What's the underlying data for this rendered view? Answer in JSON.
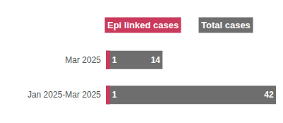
{
  "chart_data": {
    "type": "bar",
    "orientation": "horizontal",
    "stacked": false,
    "categories": [
      "Mar 2025",
      "Jan 2025-Mar 2025"
    ],
    "series": [
      {
        "name": "Epi linked cases",
        "color": "#c93a5c",
        "values": [
          1,
          1
        ]
      },
      {
        "name": "Total cases",
        "color": "#6e6e6e",
        "values": [
          14,
          42
        ]
      }
    ],
    "xlim": [
      0,
      42
    ],
    "data_labels": true,
    "tick_labels": "y",
    "legend": "top",
    "grid": false
  }
}
